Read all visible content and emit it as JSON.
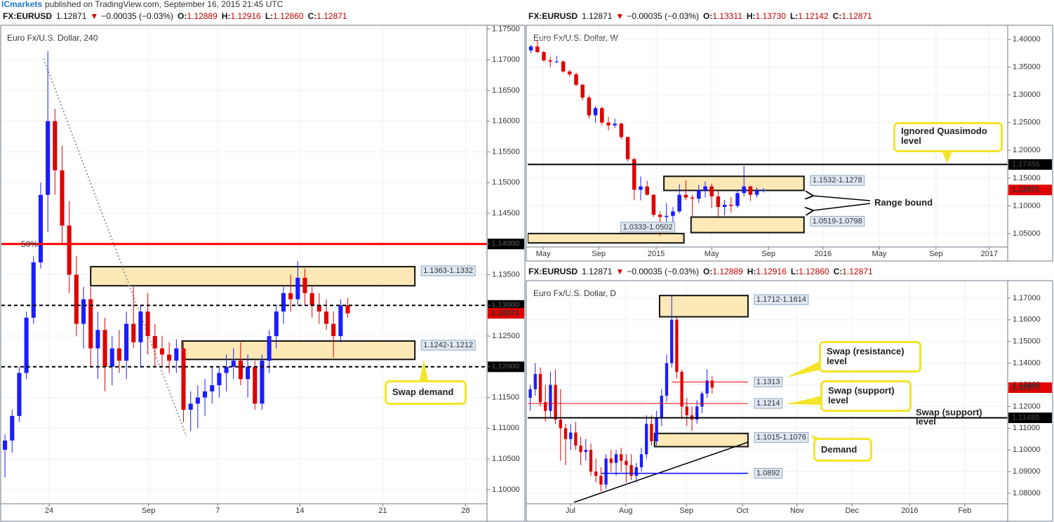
{
  "page_header": {
    "brand": "ICmarkets",
    "text": "published on TradingView.com, September 16, 2015 21:45 UTC"
  },
  "chart_data": [
    {
      "type": "candlestick",
      "header": {
        "symbol": "FX:EURUSD",
        "last": "1.12871",
        "arrow": "▼",
        "change": "−0.00035 (−0.03%)",
        "ohlc": [
          {
            "label": "O:",
            "value": "1.12889"
          },
          {
            "label": "H:",
            "value": "1.12916"
          },
          {
            "label": "L:",
            "value": "1.12860"
          },
          {
            "label": "C:",
            "value": "1.12871"
          }
        ]
      },
      "title": "Euro Fx/U.S. Dollar, 240",
      "up_color": "#1c1cff",
      "down_color": "#e00000",
      "grid": true,
      "open": [
        1.1065,
        1.108,
        1.112,
        1.119,
        1.128,
        1.137,
        1.148,
        1.16,
        1.152,
        1.143,
        1.135,
        1.127,
        1.131,
        1.123,
        1.126,
        1.12,
        1.123,
        1.121,
        1.127,
        1.124,
        1.129,
        1.125,
        1.123,
        1.122,
        1.121,
        1.123,
        1.113,
        1.114,
        1.115,
        1.116,
        1.117,
        1.119,
        1.12,
        1.121,
        1.118,
        1.12,
        1.114,
        1.121,
        1.125,
        1.129,
        1.132,
        1.131,
        1.1345,
        1.132,
        1.13,
        1.129,
        1.127,
        1.125,
        1.13
      ],
      "high": [
        1.109,
        1.113,
        1.12,
        1.129,
        1.138,
        1.15,
        1.1714,
        1.162,
        1.156,
        1.147,
        1.138,
        1.133,
        1.133,
        1.129,
        1.128,
        1.125,
        1.126,
        1.129,
        1.133,
        1.13,
        1.132,
        1.127,
        1.125,
        1.124,
        1.1245,
        1.124,
        1.116,
        1.117,
        1.118,
        1.12,
        1.12,
        1.122,
        1.123,
        1.124,
        1.122,
        1.121,
        1.122,
        1.126,
        1.13,
        1.133,
        1.135,
        1.1372,
        1.136,
        1.133,
        1.132,
        1.131,
        1.129,
        1.131,
        1.1312
      ],
      "low": [
        1.102,
        1.106,
        1.111,
        1.118,
        1.127,
        1.136,
        1.142,
        1.148,
        1.14,
        1.132,
        1.125,
        1.123,
        1.12,
        1.118,
        1.116,
        1.117,
        1.119,
        1.118,
        1.123,
        1.12,
        1.122,
        1.12,
        1.12,
        1.119,
        1.119,
        1.111,
        1.1095,
        1.11,
        1.112,
        1.114,
        1.115,
        1.116,
        1.118,
        1.117,
        1.115,
        1.113,
        1.113,
        1.119,
        1.123,
        1.127,
        1.129,
        1.13,
        1.13,
        1.128,
        1.127,
        1.126,
        1.1215,
        1.124,
        1.128
      ],
      "close": [
        1.108,
        1.112,
        1.119,
        1.128,
        1.137,
        1.148,
        1.16,
        1.152,
        1.143,
        1.135,
        1.127,
        1.131,
        1.123,
        1.126,
        1.12,
        1.123,
        1.121,
        1.127,
        1.124,
        1.129,
        1.125,
        1.123,
        1.122,
        1.121,
        1.123,
        1.113,
        1.114,
        1.115,
        1.116,
        1.117,
        1.119,
        1.12,
        1.121,
        1.118,
        1.12,
        1.114,
        1.121,
        1.125,
        1.129,
        1.132,
        1.131,
        1.1345,
        1.132,
        1.13,
        1.129,
        1.127,
        1.125,
        1.13,
        1.12871
      ],
      "xlim": [
        0,
        68
      ],
      "xticks": [
        {
          "value": 6.68,
          "label": "24"
        },
        {
          "value": 20.6,
          "label": "Sep"
        },
        {
          "value": 30.3,
          "label": "7"
        },
        {
          "value": 41.8,
          "label": "14"
        },
        {
          "value": 53.4,
          "label": "21"
        },
        {
          "value": 65.0,
          "label": "28"
        }
      ],
      "ylim": [
        1.0977,
        1.1755
      ],
      "yticks": [
        {
          "value": 1.1,
          "label": "1.10000"
        },
        {
          "value": 1.105,
          "label": "1.10500"
        },
        {
          "value": 1.11,
          "label": "1.11000"
        },
        {
          "value": 1.115,
          "label": "1.11500"
        },
        {
          "value": 1.12,
          "label": "1.12000"
        },
        {
          "value": 1.125,
          "label": "1.12500"
        },
        {
          "value": 1.13,
          "label": "1.13000"
        },
        {
          "value": 1.135,
          "label": "1.13500"
        },
        {
          "value": 1.14,
          "label": "1.14000"
        },
        {
          "value": 1.145,
          "label": "1.14500"
        },
        {
          "value": 1.15,
          "label": "1.15000"
        },
        {
          "value": 1.155,
          "label": "1.15500"
        },
        {
          "value": 1.16,
          "label": "1.16000"
        },
        {
          "value": 1.165,
          "label": "1.16500"
        },
        {
          "value": 1.17,
          "label": "1.17000"
        },
        {
          "value": 1.175,
          "label": "1.17500"
        }
      ],
      "zones": [
        {
          "top": 1.1363,
          "bottom": 1.1332,
          "x": [
            12.5,
            57.9
          ],
          "label": "1.1363-1.1332",
          "label_side": "right"
        },
        {
          "top": 1.1242,
          "bottom": 1.1212,
          "x": [
            25.3,
            57.9
          ],
          "label": "1.1242-1.1212",
          "label_side": "right"
        }
      ],
      "hlines": [
        {
          "value": 1.14,
          "label": "1.14000",
          "color": "#ff0000",
          "width": 3,
          "note": "50%",
          "label_at": "axis"
        },
        {
          "value": 1.13,
          "label": "1.13000",
          "color": "#000000",
          "width": 2,
          "dash": true,
          "label_at": "axis"
        },
        {
          "value": 1.12,
          "label": "1.12000",
          "color": "#000000",
          "width": 2,
          "dash": true,
          "label_at": "axis"
        }
      ],
      "trendlines": [
        {
          "x": [
            5.9,
            25.9
          ],
          "y": [
            1.17021,
            1.10868
          ],
          "color": "#999999",
          "dash": true
        }
      ],
      "last_price": {
        "value": 1.12871,
        "label": "1.12871",
        "color": "#e00000"
      },
      "callouts": [
        "Swap demand"
      ]
    },
    {
      "type": "candlestick",
      "header": {
        "symbol": "FX:EURUSD",
        "last": "1.12871",
        "arrow": "▼",
        "change": "−0.00035 (−0.03%)",
        "ohlc": [
          {
            "label": "O:",
            "value": "1.13311"
          },
          {
            "label": "H:",
            "value": "1.13730"
          },
          {
            "label": "L:",
            "value": "1.12142"
          },
          {
            "label": "C:",
            "value": "1.12871"
          }
        ]
      },
      "title": "Euro Fx/U.S. Dollar, W",
      "up_color": "#1c1cff",
      "down_color": "#e00000",
      "grid": true,
      "open": [
        1.38,
        1.387,
        1.377,
        1.362,
        1.36,
        1.36,
        1.342,
        1.337,
        1.318,
        1.295,
        1.263,
        1.276,
        1.25,
        1.245,
        1.248,
        1.224,
        1.184,
        1.129,
        1.135,
        1.12,
        1.084,
        1.08,
        1.082,
        1.09,
        1.12,
        1.115,
        1.113,
        1.128,
        1.135,
        1.117,
        1.098,
        1.102,
        1.1,
        1.123,
        1.135,
        1.12,
        1.128
      ],
      "high": [
        1.39,
        1.399,
        1.379,
        1.368,
        1.37,
        1.362,
        1.345,
        1.34,
        1.32,
        1.299,
        1.28,
        1.279,
        1.26,
        1.257,
        1.25,
        1.225,
        1.187,
        1.153,
        1.145,
        1.121,
        1.09,
        1.105,
        1.098,
        1.139,
        1.146,
        1.12,
        1.138,
        1.144,
        1.14,
        1.128,
        1.111,
        1.116,
        1.128,
        1.1714,
        1.136,
        1.133,
        1.132
      ],
      "low": [
        1.375,
        1.375,
        1.36,
        1.35,
        1.357,
        1.34,
        1.333,
        1.315,
        1.29,
        1.257,
        1.25,
        1.245,
        1.236,
        1.24,
        1.22,
        1.18,
        1.11,
        1.11,
        1.119,
        1.08,
        1.046,
        1.058,
        1.066,
        1.087,
        1.11,
        1.082,
        1.105,
        1.115,
        1.096,
        1.081,
        1.083,
        1.088,
        1.096,
        1.117,
        1.109,
        1.115,
        1.124
      ],
      "close": [
        1.387,
        1.377,
        1.362,
        1.36,
        1.36,
        1.342,
        1.337,
        1.318,
        1.295,
        1.263,
        1.276,
        1.25,
        1.245,
        1.248,
        1.224,
        1.184,
        1.129,
        1.135,
        1.12,
        1.084,
        1.08,
        1.082,
        1.09,
        1.12,
        1.115,
        1.113,
        1.128,
        1.135,
        1.117,
        1.098,
        1.102,
        1.1,
        1.123,
        1.135,
        1.12,
        1.128,
        1.1287
      ],
      "xlim": [
        0,
        74.35
      ],
      "xticks": [
        {
          "value": 2.4,
          "label": "May"
        },
        {
          "value": 11.0,
          "label": "Sep"
        },
        {
          "value": 19.9,
          "label": "2015"
        },
        {
          "value": 28.5,
          "label": "May"
        },
        {
          "value": 37.3,
          "label": "Sep"
        },
        {
          "value": 45.75,
          "label": "2016"
        },
        {
          "value": 54.45,
          "label": "May"
        },
        {
          "value": 63.25,
          "label": "Sep"
        },
        {
          "value": 71.5,
          "label": "2017"
        }
      ],
      "ylim": [
        1.026,
        1.424
      ],
      "yticks": [
        {
          "value": 1.05,
          "label": "1.05000"
        },
        {
          "value": 1.1,
          "label": "1.10000"
        },
        {
          "value": 1.15,
          "label": "1.15000"
        },
        {
          "value": 1.2,
          "label": "1.20000"
        },
        {
          "value": 1.25,
          "label": "1.25000"
        },
        {
          "value": 1.3,
          "label": "1.30000"
        },
        {
          "value": 1.35,
          "label": "1.35000"
        },
        {
          "value": 1.4,
          "label": "1.40000"
        }
      ],
      "zones": [
        {
          "top": 1.1532,
          "bottom": 1.1278,
          "x": [
            21.1,
            42.8
          ],
          "label": "1.1532-1.1278",
          "label_side": "right"
        },
        {
          "top": 1.0798,
          "bottom": 1.0519,
          "x": [
            25.3,
            42.8
          ],
          "label": "1.0519-1.0798",
          "label_side": "right"
        },
        {
          "top": 1.0502,
          "bottom": 1.0333,
          "x": [
            0,
            24.2
          ],
          "label": "1.0333-1.0502",
          "label_side": "top"
        }
      ],
      "hlines": [
        {
          "value": 1.17456,
          "label": "1.17456",
          "color": "#000000",
          "width": 2,
          "label_at": "axis"
        }
      ],
      "trendlines": [],
      "last_price": {
        "value": 1.12871,
        "label": "1.12871",
        "color": "#e00000"
      },
      "callouts": [
        "Ignored Quasimodo level",
        "Range bound"
      ]
    },
    {
      "type": "candlestick",
      "header": {
        "symbol": "FX:EURUSD",
        "last": "1.12871",
        "arrow": "▼",
        "change": "−0.00035 (−0.03%)",
        "ohlc": [
          {
            "label": "O:",
            "value": "1.12889"
          },
          {
            "label": "H:",
            "value": "1.12916"
          },
          {
            "label": "L:",
            "value": "1.12860"
          },
          {
            "label": "C:",
            "value": "1.12871"
          }
        ]
      },
      "title": "Euro Fx/U.S. Dollar, D",
      "up_color": "#1c1cff",
      "down_color": "#e00000",
      "grid": true,
      "open": [
        1.124,
        1.128,
        1.135,
        1.122,
        1.118,
        1.13,
        1.114,
        1.11,
        1.105,
        1.108,
        1.102,
        1.099,
        1.1,
        1.09,
        1.088,
        1.084,
        1.096,
        1.094,
        1.098,
        1.095,
        1.093,
        1.088,
        1.092,
        1.098,
        1.112,
        1.104,
        1.115,
        1.125,
        1.14,
        1.16,
        1.136,
        1.12,
        1.116,
        1.114,
        1.12,
        1.126,
        1.132
      ],
      "high": [
        1.13,
        1.14,
        1.138,
        1.13,
        1.136,
        1.137,
        1.128,
        1.112,
        1.112,
        1.113,
        1.106,
        1.105,
        1.103,
        1.096,
        1.092,
        1.098,
        1.1,
        1.1,
        1.101,
        1.098,
        1.098,
        1.094,
        1.101,
        1.116,
        1.116,
        1.118,
        1.128,
        1.144,
        1.1714,
        1.161,
        1.137,
        1.124,
        1.12,
        1.123,
        1.127,
        1.1372,
        1.134
      ],
      "low": [
        1.118,
        1.125,
        1.12,
        1.113,
        1.115,
        1.112,
        1.095,
        1.093,
        1.1,
        1.1,
        1.093,
        1.095,
        1.088,
        1.085,
        1.0808,
        1.082,
        1.09,
        1.088,
        1.09,
        1.085,
        1.086,
        1.085,
        1.09,
        1.096,
        1.102,
        1.102,
        1.111,
        1.122,
        1.138,
        1.133,
        1.115,
        1.111,
        1.1087,
        1.112,
        1.117,
        1.124,
        1.126
      ],
      "close": [
        1.128,
        1.135,
        1.122,
        1.118,
        1.13,
        1.114,
        1.11,
        1.105,
        1.108,
        1.102,
        1.099,
        1.1,
        1.09,
        1.088,
        1.084,
        1.096,
        1.094,
        1.098,
        1.095,
        1.093,
        1.088,
        1.092,
        1.098,
        1.112,
        1.104,
        1.115,
        1.125,
        1.14,
        1.16,
        1.136,
        1.12,
        1.116,
        1.114,
        1.12,
        1.126,
        1.132,
        1.12871
      ],
      "xlim": [
        0,
        95
      ],
      "xticks": [
        {
          "value": 8.47,
          "label": "Jul"
        },
        {
          "value": 19.4,
          "label": "Aug"
        },
        {
          "value": 31.4,
          "label": "Sep"
        },
        {
          "value": 42.5,
          "label": "Oct"
        },
        {
          "value": 53.3,
          "label": "Nov"
        },
        {
          "value": 64.2,
          "label": "Dec"
        },
        {
          "value": 75.6,
          "label": "2016"
        },
        {
          "value": 86.5,
          "label": "Feb"
        }
      ],
      "ylim": [
        1.07516,
        1.17774
      ],
      "yticks": [
        {
          "value": 1.08,
          "label": "1.08000"
        },
        {
          "value": 1.09,
          "label": "1.09000"
        },
        {
          "value": 1.1,
          "label": "1.10000"
        },
        {
          "value": 1.11,
          "label": "1.11000"
        },
        {
          "value": 1.12,
          "label": "1.12000"
        },
        {
          "value": 1.13,
          "label": "1.13000"
        },
        {
          "value": 1.14,
          "label": "1.14000"
        },
        {
          "value": 1.15,
          "label": "1.15000"
        },
        {
          "value": 1.16,
          "label": "1.16000"
        },
        {
          "value": 1.17,
          "label": "1.17000"
        }
      ],
      "zones": [
        {
          "top": 1.1712,
          "bottom": 1.1614,
          "x": [
            26.1,
            43.6
          ],
          "label": "1.1712-1.1614",
          "label_side": "right"
        },
        {
          "top": 1.1076,
          "bottom": 1.1015,
          "x": [
            25.1,
            43.6
          ],
          "label": "1.1015-1.1076",
          "label_side": "right"
        }
      ],
      "hlines": [
        {
          "value": 1.1313,
          "label": "1.1313",
          "color": "#ff0000",
          "width": 1,
          "label_at": "end",
          "x": [
            28.5,
            43.6
          ]
        },
        {
          "value": 1.1214,
          "label": "1.1214",
          "color": "#ff0000",
          "width": 1,
          "label_at": "end",
          "x": [
            0,
            43.6
          ]
        },
        {
          "value": 1.0892,
          "label": "1.0892",
          "color": "#0000ff",
          "width": 1.5,
          "label_at": "end",
          "x": [
            14.6,
            43.6
          ]
        },
        {
          "value": 1.1148,
          "label": "1.11480",
          "color": "#000000",
          "width": 2,
          "label_at": "axis"
        }
      ],
      "trendlines": [
        {
          "x": [
            9.17,
            43.6
          ],
          "y": [
            1.07581,
            1.10355
          ],
          "color": "#000000"
        }
      ],
      "last_price": {
        "value": 1.12871,
        "label": "1.12871",
        "color": "#e00000"
      },
      "callouts": [
        "Swap (resistance) level",
        "Swap (support) level",
        "Swap (support) level",
        "Demand"
      ]
    }
  ]
}
